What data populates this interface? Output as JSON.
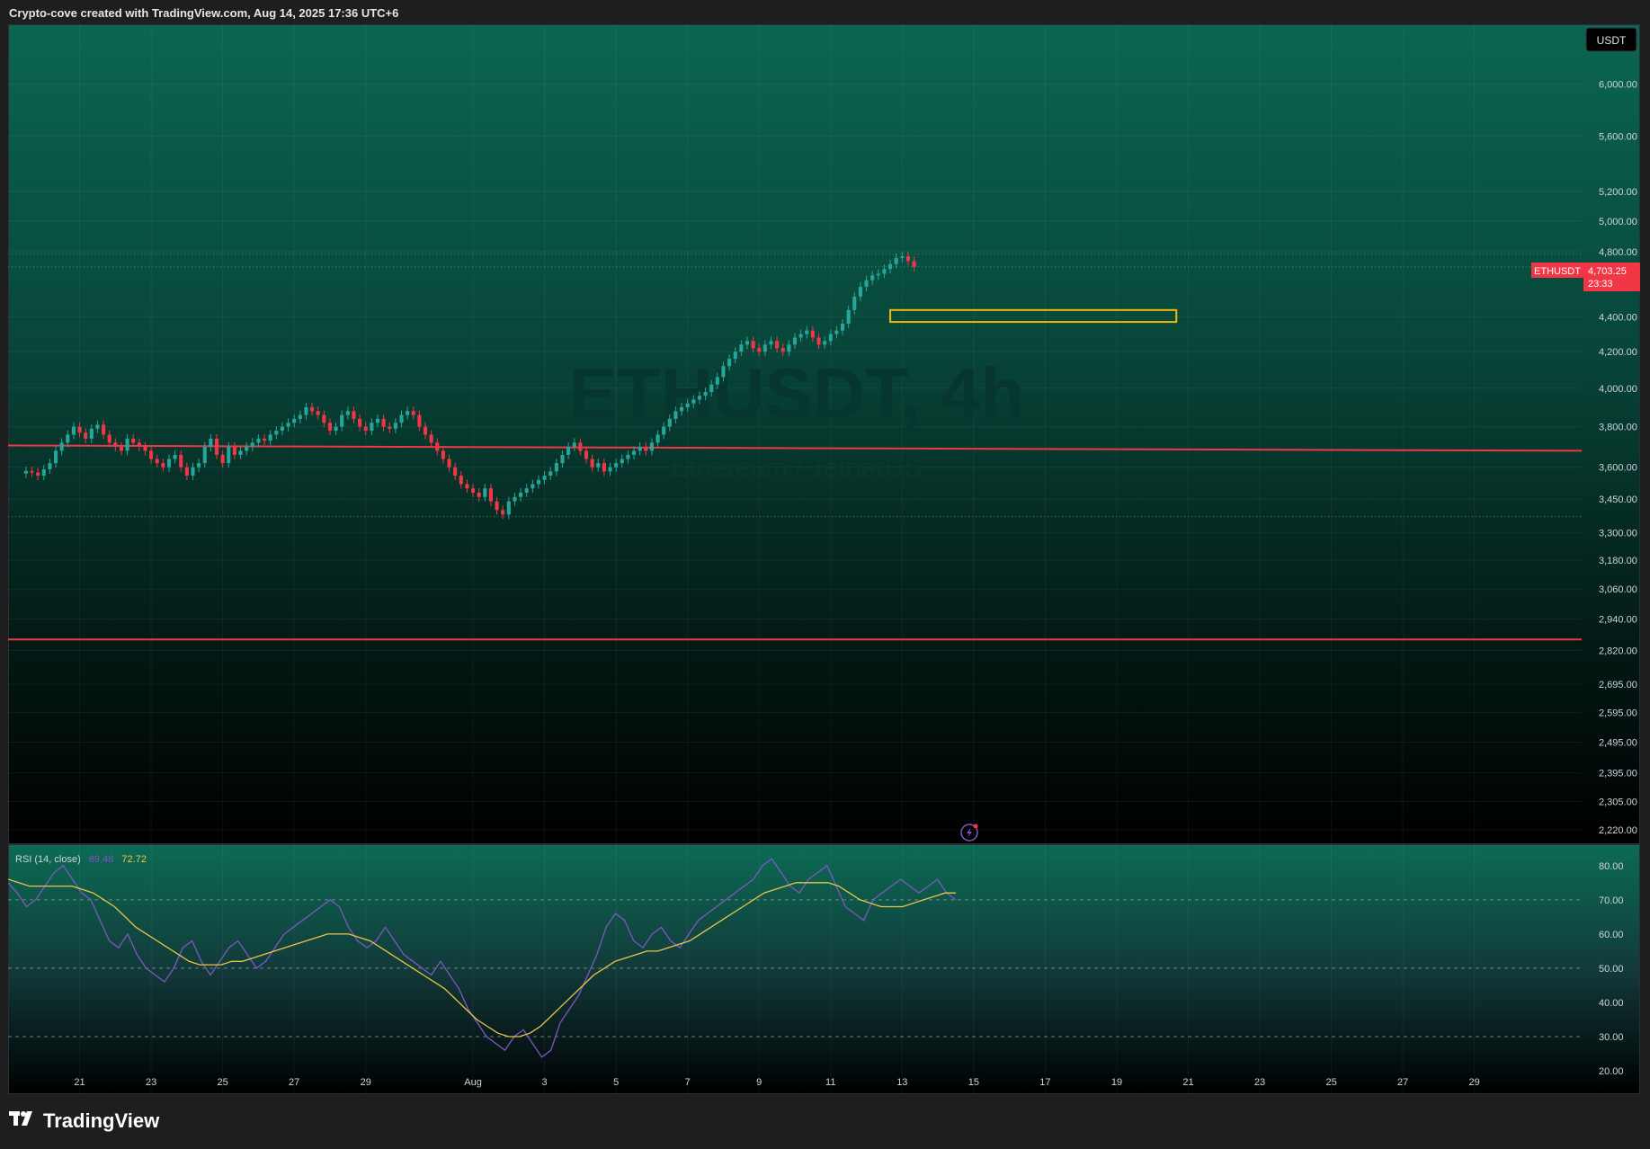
{
  "header": {
    "credit": "Crypto-cove created with TradingView.com, Aug 14, 2025 17:36 UTC+6"
  },
  "footer": {
    "brand": "TradingView",
    "logo_icon": "tradingview-logo-icon"
  },
  "chart": {
    "currency_button": "USDT",
    "watermark_symbol": "ETHUSDT, 4h",
    "watermark_description": "Ethereum / TetherUS",
    "price_tag": {
      "symbol": "ETHUSDT",
      "price": "4,703.25",
      "countdown": "23:33",
      "color": "#f23645"
    },
    "colors": {
      "up": "#26a69a",
      "down": "#f23645",
      "line": "#f23645",
      "zone": "#f0b90b",
      "rsi": "#7e57c2",
      "rsi_ma": "#e8c547"
    },
    "lightning_icon": "lightning-bolt-icon"
  },
  "rsi_legend": {
    "name": "RSI (14, close)",
    "value": "69.48",
    "ma_value": "72.72"
  },
  "chart_data": [
    {
      "type": "candlestick",
      "symbol": "ETHUSDT",
      "interval": "4h",
      "y_scale": "log",
      "y_ticks": [
        "6,000.00",
        "5,600.00",
        "5,200.00",
        "5,000.00",
        "4,800.00",
        "4,400.00",
        "4,200.00",
        "4,000.00",
        "3,800.00",
        "3,600.00",
        "3,450.00",
        "3,300.00",
        "3,180.00",
        "3,060.00",
        "2,940.00",
        "2,820.00",
        "2,695.00",
        "2,595.00",
        "2,495.00",
        "2,395.00",
        "2,305.00",
        "2,220.00"
      ],
      "y_tick_values": [
        6000,
        5600,
        5200,
        5000,
        4800,
        4400,
        4200,
        4000,
        3800,
        3600,
        3450,
        3300,
        3180,
        3060,
        2940,
        2820,
        2695,
        2595,
        2495,
        2395,
        2305,
        2220
      ],
      "x_ticks": [
        "21",
        "23",
        "25",
        "27",
        "29",
        "Aug",
        "3",
        "5",
        "7",
        "9",
        "11",
        "13",
        "15",
        "17",
        "19",
        "21",
        "23",
        "25",
        "27",
        "29"
      ],
      "x_tick_dates": [
        "2025-07-21",
        "2025-07-23",
        "2025-07-25",
        "2025-07-27",
        "2025-07-29",
        "2025-08-01",
        "2025-08-03",
        "2025-08-05",
        "2025-08-07",
        "2025-08-09",
        "2025-08-11",
        "2025-08-13",
        "2025-08-15",
        "2025-08-17",
        "2025-08-19",
        "2025-08-21",
        "2025-08-23",
        "2025-08-25",
        "2025-08-27",
        "2025-08-29"
      ],
      "x_range": [
        "2025-07-19",
        "2025-09-01"
      ],
      "y_range": [
        2180,
        6500
      ],
      "last_price": 4703.25,
      "horizontal_lines": [
        {
          "start": [
            "2025-07-19",
            3706
          ],
          "end": [
            "2025-09-01",
            3680
          ]
        },
        {
          "start": [
            "2025-07-19",
            2861
          ],
          "end": [
            "2025-09-01",
            2861
          ]
        }
      ],
      "dotted_levels": [
        4784,
        3370
      ],
      "rectangle": {
        "start": "2025-08-12T16:00",
        "end": "2025-08-20T16:00",
        "top": 4440,
        "bottom": 4370
      },
      "series_close": [
        3582,
        3575,
        3560,
        3590,
        3620,
        3680,
        3720,
        3760,
        3800,
        3770,
        3740,
        3790,
        3810,
        3760,
        3720,
        3700,
        3680,
        3740,
        3720,
        3700,
        3680,
        3640,
        3620,
        3600,
        3640,
        3660,
        3600,
        3560,
        3600,
        3620,
        3700,
        3740,
        3660,
        3620,
        3700,
        3660,
        3680,
        3700,
        3720,
        3740,
        3730,
        3760,
        3780,
        3800,
        3820,
        3840,
        3860,
        3900,
        3880,
        3860,
        3820,
        3780,
        3800,
        3860,
        3880,
        3840,
        3800,
        3780,
        3820,
        3840,
        3800,
        3790,
        3820,
        3860,
        3880,
        3860,
        3800,
        3760,
        3720,
        3680,
        3640,
        3600,
        3560,
        3520,
        3500,
        3480,
        3460,
        3500,
        3440,
        3400,
        3380,
        3440,
        3460,
        3480,
        3500,
        3520,
        3540,
        3560,
        3580,
        3620,
        3660,
        3700,
        3720,
        3680,
        3640,
        3600,
        3620,
        3580,
        3600,
        3620,
        3640,
        3660,
        3680,
        3700,
        3680,
        3720,
        3760,
        3800,
        3840,
        3880,
        3900,
        3920,
        3940,
        3960,
        3980,
        4020,
        4060,
        4120,
        4160,
        4200,
        4240,
        4260,
        4220,
        4200,
        4240,
        4260,
        4220,
        4200,
        4240,
        4280,
        4300,
        4320,
        4280,
        4240,
        4260,
        4300,
        4320,
        4360,
        4440,
        4520,
        4580,
        4620,
        4650,
        4660,
        4690,
        4720,
        4760,
        4770,
        4740,
        4703
      ],
      "series_start": "2025-07-19T12:00",
      "candle_interval_hours": 4
    },
    {
      "type": "line",
      "title": "RSI (14, close)",
      "y_ticks": [
        "80.00",
        "70.00",
        "60.00",
        "50.00",
        "40.00",
        "30.00",
        "20.00"
      ],
      "y_tick_values": [
        80,
        70,
        60,
        50,
        40,
        30,
        20
      ],
      "y_range": [
        15,
        86
      ],
      "reference_lines": [
        70,
        50,
        30
      ],
      "series": [
        {
          "name": "RSI",
          "values": [
            75,
            72,
            68,
            70,
            74,
            78,
            80,
            76,
            72,
            70,
            64,
            58,
            56,
            60,
            54,
            50,
            48,
            46,
            50,
            56,
            58,
            52,
            48,
            52,
            56,
            58,
            54,
            50,
            52,
            56,
            60,
            62,
            64,
            66,
            68,
            70,
            68,
            62,
            58,
            56,
            58,
            62,
            58,
            54,
            52,
            50,
            48,
            52,
            48,
            44,
            38,
            34,
            30,
            28,
            26,
            30,
            32,
            28,
            24,
            26,
            34,
            38,
            42,
            48,
            54,
            62,
            66,
            64,
            58,
            56,
            60,
            62,
            58,
            56,
            60,
            64,
            66,
            68,
            70,
            72,
            74,
            76,
            80,
            82,
            78,
            74,
            72,
            76,
            78,
            80,
            74,
            68,
            66,
            64,
            70,
            72,
            74,
            76,
            74,
            72,
            74,
            76,
            72,
            70
          ]
        },
        {
          "name": "RSI-based MA",
          "values": [
            76,
            75,
            74,
            74,
            74,
            74,
            74,
            73,
            72,
            70,
            68,
            65,
            62,
            60,
            58,
            56,
            54,
            52,
            51,
            51,
            51,
            52,
            52,
            53,
            54,
            55,
            56,
            57,
            58,
            59,
            60,
            60,
            60,
            59,
            58,
            56,
            54,
            52,
            50,
            48,
            46,
            44,
            41,
            38,
            35,
            33,
            31,
            30,
            30,
            31,
            33,
            36,
            39,
            42,
            45,
            48,
            50,
            52,
            53,
            54,
            55,
            55,
            56,
            57,
            58,
            60,
            62,
            64,
            66,
            68,
            70,
            72,
            73,
            74,
            75,
            75,
            75,
            75,
            74,
            72,
            70,
            69,
            68,
            68,
            68,
            69,
            70,
            71,
            72,
            72
          ]
        }
      ]
    }
  ]
}
